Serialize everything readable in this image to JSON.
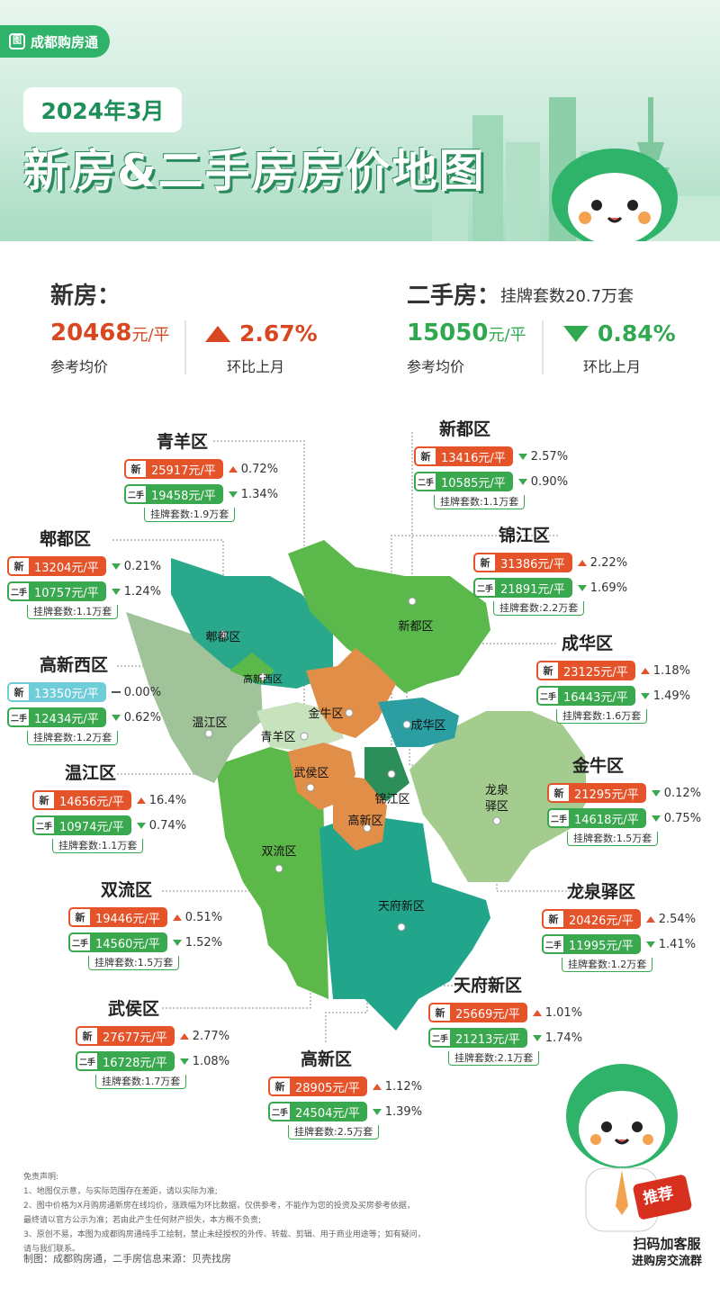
{
  "brand": {
    "name": "成都购房通",
    "mark": "图"
  },
  "header": {
    "date": "2024年3月",
    "title": "新房&二手房房价地图"
  },
  "summary": {
    "new": {
      "label": "新房：",
      "price": "20468",
      "unit": "元/平",
      "price_hint": "参考均价",
      "change": "2.67%",
      "change_hint": "环比上月",
      "direction": "up"
    },
    "second": {
      "label": "二手房：",
      "sub": "挂牌套数20.7万套",
      "price": "15050",
      "unit": "元/平",
      "price_hint": "参考均价",
      "change": "0.84%",
      "change_hint": "环比上月",
      "direction": "down"
    }
  },
  "colors": {
    "new": "#e4532a",
    "second": "#3aa84e",
    "flat": "#6fcdd9",
    "up": "#e4532a",
    "down": "#3aa84e"
  },
  "badges": {
    "new": "新",
    "second": "二手"
  },
  "map_labels": {
    "pidu": "郫都区",
    "gaoxinxi": "高新西区",
    "xindu": "新都区",
    "wenjiang": "温江区",
    "qingyang": "青羊区",
    "jinniu": "金牛区",
    "chenghua": "成华区",
    "wuhou": "武侯区",
    "jinjiang": "锦江区",
    "gaoxin": "高新区",
    "longquan_1": "龙泉",
    "longquan_2": "驿区",
    "shuangliu": "双流区",
    "tianfu": "天府新区"
  },
  "districts": [
    {
      "id": "qingyang",
      "name": "青羊区",
      "new_price": "25917元/平",
      "new_dir": "up",
      "new_change": "0.72%",
      "sec_price": "19458元/平",
      "sec_dir": "down",
      "sec_change": "1.34%",
      "listing": "挂牌套数:1.9万套"
    },
    {
      "id": "xindu",
      "name": "新都区",
      "new_price": "13416元/平",
      "new_dir": "down",
      "new_change": "2.57%",
      "sec_price": "10585元/平",
      "sec_dir": "down",
      "sec_change": "0.90%",
      "listing": "挂牌套数:1.1万套"
    },
    {
      "id": "pidu",
      "name": "郫都区",
      "new_price": "13204元/平",
      "new_dir": "down",
      "new_change": "0.21%",
      "sec_price": "10757元/平",
      "sec_dir": "down",
      "sec_change": "1.24%",
      "listing": "挂牌套数:1.1万套"
    },
    {
      "id": "jinjiang",
      "name": "锦江区",
      "new_price": "31386元/平",
      "new_dir": "up",
      "new_change": "2.22%",
      "sec_price": "21891元/平",
      "sec_dir": "down",
      "sec_change": "1.69%",
      "listing": "挂牌套数:2.2万套"
    },
    {
      "id": "gaoxinxi",
      "name": "高新西区",
      "new_price": "13350元/平",
      "new_dir": "flat",
      "new_change": "0.00%",
      "sec_price": "12434元/平",
      "sec_dir": "down",
      "sec_change": "0.62%",
      "listing": "挂牌套数:1.2万套"
    },
    {
      "id": "chenghua",
      "name": "成华区",
      "new_price": "23125元/平",
      "new_dir": "up",
      "new_change": "1.18%",
      "sec_price": "16443元/平",
      "sec_dir": "down",
      "sec_change": "1.49%",
      "listing": "挂牌套数:1.6万套"
    },
    {
      "id": "wenjiang",
      "name": "温江区",
      "new_price": "14656元/平",
      "new_dir": "up",
      "new_change": "16.4%",
      "sec_price": "10974元/平",
      "sec_dir": "down",
      "sec_change": "0.74%",
      "listing": "挂牌套数:1.1万套"
    },
    {
      "id": "jinniu",
      "name": "金牛区",
      "new_price": "21295元/平",
      "new_dir": "down",
      "new_change": "0.12%",
      "sec_price": "14618元/平",
      "sec_dir": "down",
      "sec_change": "0.75%",
      "listing": "挂牌套数:1.5万套"
    },
    {
      "id": "shuangliu",
      "name": "双流区",
      "new_price": "19446元/平",
      "new_dir": "up",
      "new_change": "0.51%",
      "sec_price": "14560元/平",
      "sec_dir": "down",
      "sec_change": "1.52%",
      "listing": "挂牌套数:1.5万套"
    },
    {
      "id": "longquan",
      "name": "龙泉驿区",
      "new_price": "20426元/平",
      "new_dir": "up",
      "new_change": "2.54%",
      "sec_price": "11995元/平",
      "sec_dir": "down",
      "sec_change": "1.41%",
      "listing": "挂牌套数:1.2万套"
    },
    {
      "id": "tianfu",
      "name": "天府新区",
      "new_price": "25669元/平",
      "new_dir": "up",
      "new_change": "1.01%",
      "sec_price": "21213元/平",
      "sec_dir": "down",
      "sec_change": "1.74%",
      "listing": "挂牌套数:2.1万套"
    },
    {
      "id": "wuhou",
      "name": "武侯区",
      "new_price": "27677元/平",
      "new_dir": "up",
      "new_change": "2.77%",
      "sec_price": "16728元/平",
      "sec_dir": "down",
      "sec_change": "1.08%",
      "listing": "挂牌套数:1.7万套"
    },
    {
      "id": "gaoxin",
      "name": "高新区",
      "new_price": "28905元/平",
      "new_dir": "up",
      "new_change": "1.12%",
      "sec_price": "24504元/平",
      "sec_dir": "down",
      "sec_change": "1.39%",
      "listing": "挂牌套数:2.5万套"
    }
  ],
  "disclaimer": {
    "title": "免责声明:",
    "items": [
      "1、地图仅示意，与实际范围存在差距，请以实际为准;",
      "2、图中价格为X月购房通新房在线均价，涨跌幅为环比数据，仅供参考，不能作为您的投资及买房参考依据，",
      "最终请以官方公示为准；若由此产生任何财产损失，本方概不负责;",
      "3、原创不易，本图为成都购房通纯手工绘制，禁止未经授权的外传、转载、剪辑、用于商业用途等；如有疑问，",
      "请与我们联系。"
    ],
    "credit": "制图：成都购房通，二手房信息来源：贝壳找房"
  },
  "promo": {
    "badge": "推荐",
    "line1": "扫码加客服",
    "line2": "进购房交流群"
  }
}
